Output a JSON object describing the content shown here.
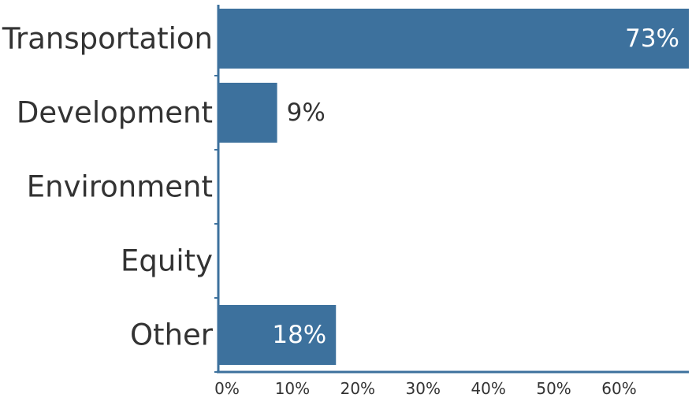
{
  "chart_data": {
    "type": "bar",
    "orientation": "horizontal",
    "categories": [
      "Transportation",
      "Development",
      "Environment",
      "Equity",
      "Other"
    ],
    "values": [
      73,
      9,
      0,
      0,
      18
    ],
    "value_labels": [
      "73%",
      "9%",
      "",
      "",
      "18%"
    ],
    "xlim": [
      0,
      72
    ],
    "x_ticks": [
      0,
      10,
      20,
      30,
      40,
      50,
      60
    ],
    "x_tick_labels": [
      "0%",
      "10%",
      "20%",
      "30%",
      "40%",
      "50%",
      "60%"
    ],
    "title": "",
    "xlabel": "",
    "ylabel": "",
    "grid": false,
    "colors": {
      "bar": "#3d719d",
      "axis": "#3d719d",
      "text": "#333333",
      "label_inside": "#ffffff"
    }
  }
}
